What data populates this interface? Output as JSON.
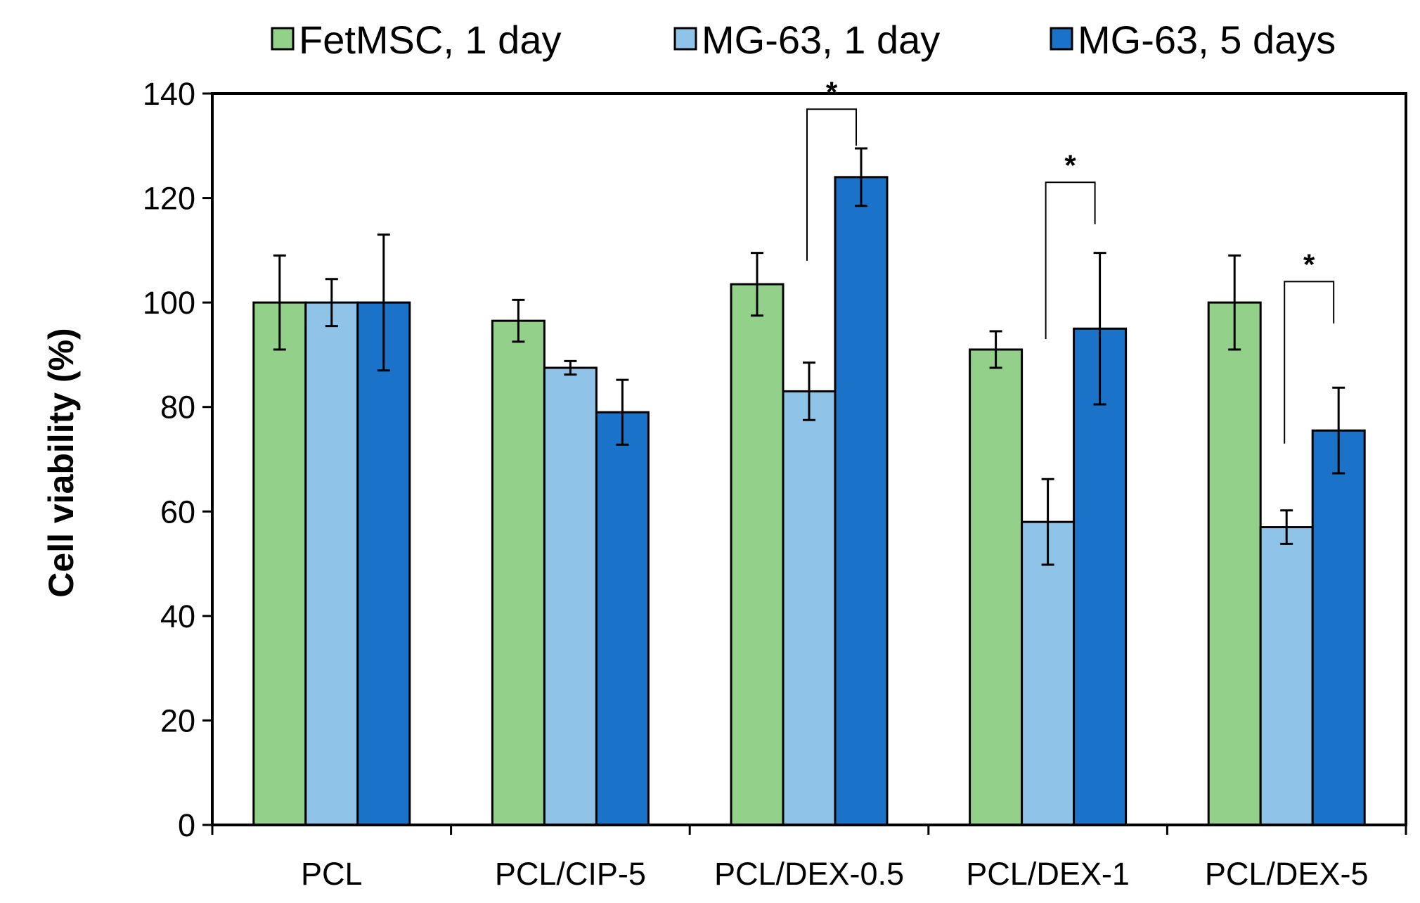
{
  "chart_data": {
    "type": "bar",
    "title": "",
    "xlabel": "",
    "ylabel": "Cell viability (%)",
    "ylim": [
      0,
      140
    ],
    "yticks": [
      0,
      20,
      40,
      60,
      80,
      100,
      120,
      140
    ],
    "grid": false,
    "legend_position": "top",
    "categories": [
      "PCL",
      "PCL/CIP-5",
      "PCL/DEX-0.5",
      "PCL/DEX-1",
      "PCL/DEX-5"
    ],
    "series": [
      {
        "name": "FetMSC, 1 day",
        "color": "#93d08a",
        "values": [
          100,
          96.5,
          103.5,
          91,
          100
        ],
        "errors": [
          9,
          4,
          6,
          3.5,
          9
        ]
      },
      {
        "name": "MG-63, 1 day",
        "color": "#8fc3e8",
        "values": [
          100,
          87.5,
          83,
          58,
          57
        ],
        "errors": [
          4.5,
          1.3,
          5.5,
          8.2,
          3.2
        ]
      },
      {
        "name": "MG-63, 5 days",
        "color": "#1a72c9",
        "values": [
          100,
          79,
          124,
          95,
          75.5
        ],
        "errors": [
          13,
          6.2,
          5.5,
          14.5,
          8.2
        ]
      }
    ],
    "significance": [
      {
        "category": "PCL/DEX-0.5",
        "from_series": 1,
        "to_series": 2,
        "label": "*",
        "level": 137,
        "left_drop": 108,
        "right_drop": 130
      },
      {
        "category": "PCL/DEX-1",
        "from_series": 1,
        "to_series": 2,
        "label": "*",
        "level": 123,
        "left_drop": 93,
        "right_drop": 115
      },
      {
        "category": "PCL/DEX-5",
        "from_series": 1,
        "to_series": 2,
        "label": "*",
        "level": 104,
        "left_drop": 73,
        "right_drop": 96
      }
    ]
  }
}
